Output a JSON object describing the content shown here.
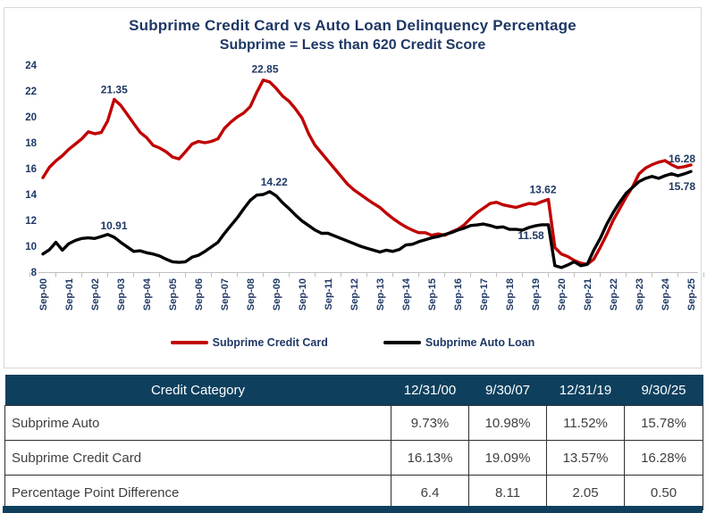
{
  "chart": {
    "title_line1": "Subprime Credit Card vs Auto Loan Delinquency Percentage",
    "title_line2": "Subprime = Less than 620 Credit Score",
    "legend": [
      {
        "label": "Subprime Credit Card",
        "color": "#c00000"
      },
      {
        "label": "Subprime Auto Loan",
        "color": "#000000"
      }
    ]
  },
  "chart_data": {
    "type": "line",
    "frequency": "quarterly",
    "x_start": "Sep-00",
    "x_end": "Sep-25",
    "x_tick_labels": [
      "Sep-00",
      "Sep-01",
      "Sep-02",
      "Sep-03",
      "Sep-04",
      "Sep-05",
      "Sep-06",
      "Sep-07",
      "Sep-08",
      "Sep-09",
      "Sep-10",
      "Sep-11",
      "Sep-12",
      "Sep-13",
      "Sep-14",
      "Sep-15",
      "Sep-16",
      "Sep-17",
      "Sep-18",
      "Sep-19",
      "Sep-20",
      "Sep-21",
      "Sep-22",
      "Sep-23",
      "Sep-24",
      "Sep-25"
    ],
    "ylim": [
      8,
      24
    ],
    "ytick_step": 2,
    "grid": false,
    "legend_position": "bottom",
    "series": [
      {
        "name": "Subprime Credit Card",
        "color": "#c00000",
        "values": [
          15.3,
          16.1,
          16.6,
          17.0,
          17.5,
          17.9,
          18.3,
          18.85,
          18.7,
          18.8,
          19.7,
          21.35,
          20.9,
          20.2,
          19.5,
          18.8,
          18.4,
          17.8,
          17.6,
          17.3,
          16.9,
          16.75,
          17.3,
          17.9,
          18.1,
          18.0,
          18.1,
          18.3,
          19.1,
          19.6,
          20.0,
          20.3,
          20.8,
          21.9,
          22.85,
          22.7,
          22.2,
          21.6,
          21.2,
          20.6,
          19.9,
          18.7,
          17.8,
          17.2,
          16.6,
          16.0,
          15.4,
          14.8,
          14.35,
          14.0,
          13.65,
          13.3,
          13.0,
          12.55,
          12.15,
          11.8,
          11.5,
          11.25,
          11.05,
          11.05,
          10.85,
          10.95,
          10.85,
          11.1,
          11.3,
          11.65,
          12.15,
          12.6,
          12.95,
          13.3,
          13.4,
          13.2,
          13.1,
          13.0,
          13.15,
          13.3,
          13.25,
          13.45,
          13.62,
          9.9,
          9.4,
          9.2,
          8.9,
          8.7,
          8.6,
          9.0,
          9.9,
          10.9,
          12.0,
          12.9,
          13.8,
          14.6,
          15.6,
          16.05,
          16.3,
          16.5,
          16.62,
          16.3,
          16.07,
          16.15,
          16.28
        ],
        "point_labels": [
          {
            "index": 11,
            "text": "21.35",
            "dx": 0,
            "dy": -7
          },
          {
            "index": 34,
            "text": "22.85",
            "dx": 2,
            "dy": -8
          },
          {
            "index": 78,
            "text": "13.62",
            "dx": -6,
            "dy": -7
          },
          {
            "index": 100,
            "text": "16.28",
            "dx": -10,
            "dy": -3
          }
        ]
      },
      {
        "name": "Subprime Auto Loan",
        "color": "#000000",
        "values": [
          9.4,
          9.73,
          10.3,
          9.7,
          10.2,
          10.45,
          10.6,
          10.65,
          10.6,
          10.75,
          10.91,
          10.7,
          10.3,
          9.95,
          9.6,
          9.65,
          9.5,
          9.4,
          9.25,
          9.0,
          8.8,
          8.75,
          8.8,
          9.15,
          9.3,
          9.6,
          9.95,
          10.3,
          10.98,
          11.6,
          12.2,
          12.9,
          13.55,
          13.95,
          14.0,
          14.22,
          13.9,
          13.35,
          12.9,
          12.4,
          11.95,
          11.6,
          11.25,
          11.0,
          11.0,
          10.8,
          10.6,
          10.4,
          10.2,
          10.0,
          9.85,
          9.7,
          9.55,
          9.7,
          9.6,
          9.75,
          10.1,
          10.15,
          10.35,
          10.5,
          10.65,
          10.75,
          10.9,
          11.05,
          11.25,
          11.4,
          11.6,
          11.65,
          11.72,
          11.6,
          11.45,
          11.5,
          11.3,
          11.3,
          11.25,
          11.45,
          11.58,
          11.66,
          11.66,
          8.5,
          8.35,
          8.55,
          8.8,
          8.5,
          8.6,
          9.7,
          10.6,
          11.7,
          12.6,
          13.4,
          14.1,
          14.55,
          15.0,
          15.25,
          15.4,
          15.25,
          15.45,
          15.6,
          15.45,
          15.6,
          15.78
        ],
        "point_labels": [
          {
            "index": 10,
            "text": "10.91",
            "dx": 7,
            "dy": -6
          },
          {
            "index": 35,
            "text": "14.22",
            "dx": 5,
            "dy": -7
          },
          {
            "index": 76,
            "text": "11.58",
            "dx": -5,
            "dy": 15
          },
          {
            "index": 100,
            "text": "15.78",
            "dx": -10,
            "dy": 21
          }
        ]
      }
    ]
  },
  "table": {
    "header": [
      "Credit Category",
      "12/31/00",
      "9/30/07",
      "12/31/19",
      "9/30/25"
    ],
    "rows": [
      {
        "label": "Subprime Auto",
        "values": [
          "9.73%",
          "10.98%",
          "11.52%",
          "15.78%"
        ]
      },
      {
        "label": "Subprime Credit Card",
        "values": [
          "16.13%",
          "19.09%",
          "13.57%",
          "16.28%"
        ]
      },
      {
        "label": "Percentage Point Difference",
        "values": [
          "6.4",
          "8.11",
          "2.05",
          "0.50"
        ]
      }
    ]
  },
  "colors": {
    "credit_card_line": "#c00000",
    "auto_loan_line": "#000000",
    "title_text": "#1f3864",
    "axis_text": "#1f3864",
    "axis_line": "#bfbfbf",
    "table_header_bg": "#0e405e",
    "accent_bar": "#0e405e"
  }
}
